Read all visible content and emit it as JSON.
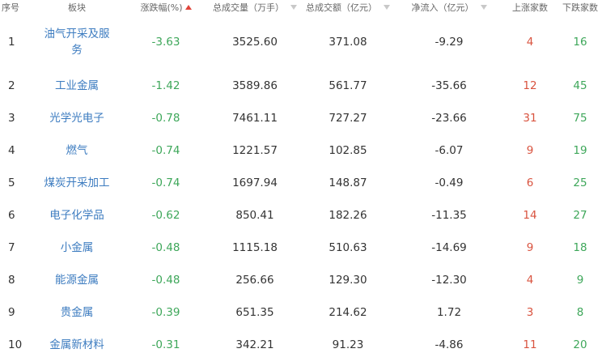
{
  "table": {
    "headers": [
      "序号",
      "板块",
      "涨跌幅(%)",
      "总成交量（万手）",
      "总成交额（亿元）",
      "净流入（亿元）",
      "上涨家数",
      "下跌家数"
    ],
    "rows": [
      [
        "1",
        "油气开采及服务",
        "-3.63",
        "3525.60",
        "371.08",
        "-9.29",
        "4",
        "16"
      ],
      [
        "2",
        "工业金属",
        "-1.42",
        "3589.86",
        "561.77",
        "-35.66",
        "12",
        "45"
      ],
      [
        "3",
        "光学光电子",
        "-0.78",
        "7461.11",
        "727.27",
        "-23.66",
        "31",
        "75"
      ],
      [
        "4",
        "燃气",
        "-0.74",
        "1221.57",
        "102.85",
        "-6.07",
        "9",
        "19"
      ],
      [
        "5",
        "煤炭开采加工",
        "-0.74",
        "1697.94",
        "148.87",
        "-0.49",
        "6",
        "25"
      ],
      [
        "6",
        "电子化学品",
        "-0.62",
        "850.41",
        "182.26",
        "-11.35",
        "14",
        "27"
      ],
      [
        "7",
        "小金属",
        "-0.48",
        "1115.18",
        "510.63",
        "-14.69",
        "9",
        "18"
      ],
      [
        "8",
        "能源金属",
        "-0.48",
        "256.66",
        "129.30",
        "-12.30",
        "4",
        "9"
      ],
      [
        "9",
        "贵金属",
        "-0.39",
        "651.35",
        "214.62",
        "1.72",
        "3",
        "8"
      ],
      [
        "10",
        "金属新材料",
        "-0.31",
        "342.21",
        "91.23",
        "-4.86",
        "11",
        "20"
      ]
    ]
  }
}
